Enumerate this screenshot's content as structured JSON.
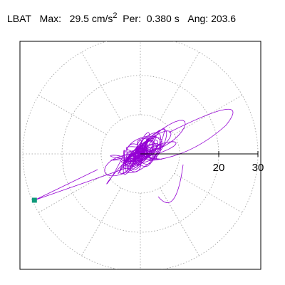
{
  "header": {
    "station": "LBAT",
    "max_label": "Max:",
    "max_value": "29.5",
    "max_unit": "cm/s",
    "max_unit_exp": "2",
    "per_label": "Per:",
    "per_value": "0.380",
    "per_unit": "s",
    "ang_label": "Ang:",
    "ang_value": "203.6"
  },
  "chart_data": {
    "type": "polar-hodogram",
    "title": "",
    "radial_rings": [
      10,
      20,
      30
    ],
    "radial_max": 30,
    "spoke_angles_deg": [
      0,
      30,
      60,
      90,
      120,
      150,
      180,
      210,
      240,
      270,
      300,
      330
    ],
    "radial_tick_labels": [
      "20",
      "30"
    ],
    "grid": true,
    "trace_color": "#9400d3",
    "marker_color": "#0f9a7a",
    "peak": {
      "amplitude": 29.5,
      "angle_deg": 203.6
    }
  }
}
